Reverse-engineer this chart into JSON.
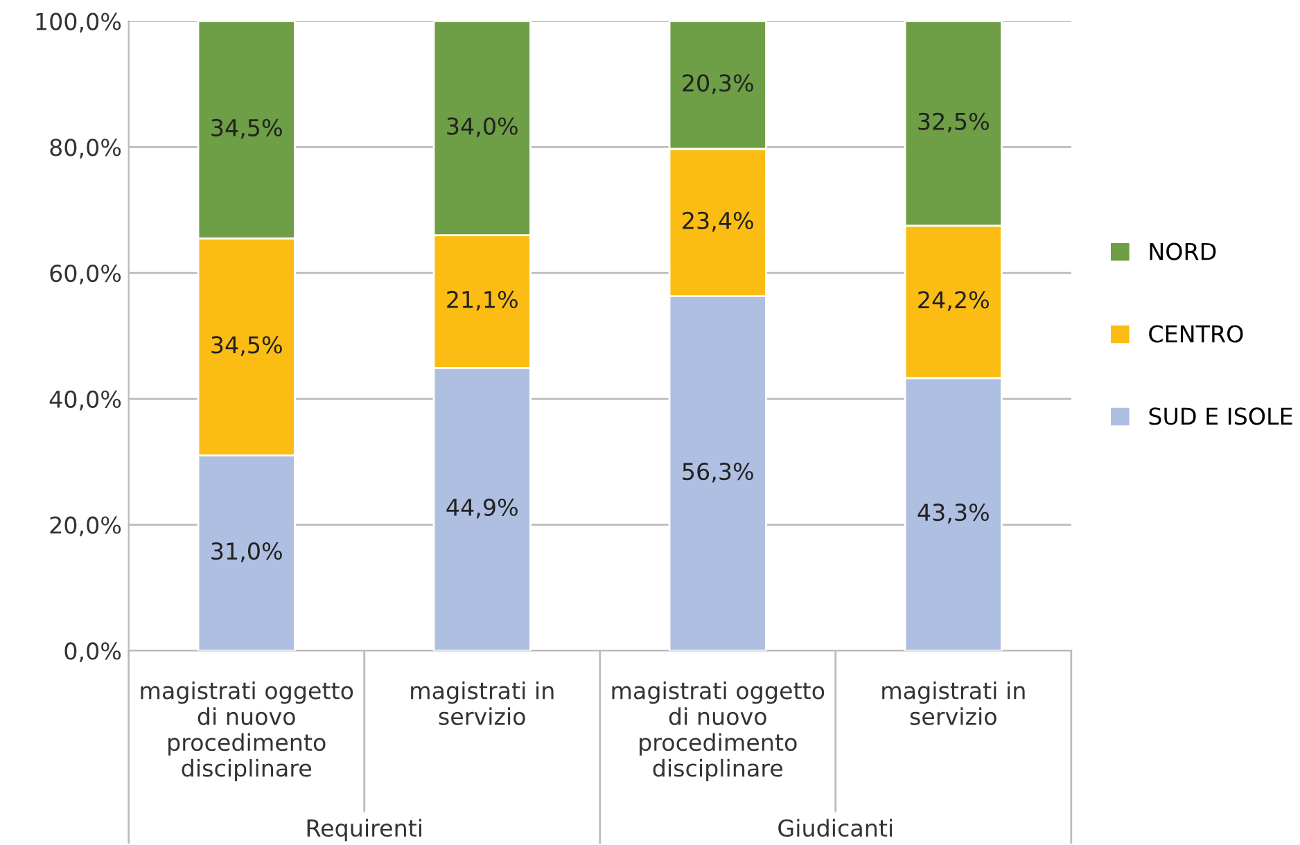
{
  "chart_data": {
    "type": "bar",
    "stacked": true,
    "categories": [
      "magistrati oggetto\ndi nuovo\nprocedimento\ndisciplinare",
      "magistrati in\nservizio",
      "magistrati oggetto\ndi nuovo\nprocedimento\ndisciplinare",
      "magistrati in\nservizio"
    ],
    "series": [
      {
        "name": "SUD E ISOLE",
        "color": "#aebfe2",
        "values": [
          31.0,
          44.9,
          56.3,
          43.3
        ],
        "value_labels": [
          "31,0%",
          "44,9%",
          "56,3%",
          "43,3%"
        ]
      },
      {
        "name": "CENTRO",
        "color": "#fbbd14",
        "values": [
          34.5,
          21.1,
          23.4,
          24.2
        ],
        "value_labels": [
          "34,5%",
          "21,1%",
          "23,4%",
          "24,2%"
        ]
      },
      {
        "name": "NORD",
        "color": "#6e9e45",
        "values": [
          34.5,
          34.0,
          20.3,
          32.5
        ],
        "value_labels": [
          "34,5%",
          "34,0%",
          "20,3%",
          "32,5%"
        ]
      }
    ],
    "ylim": [
      0,
      100
    ],
    "yticks": [
      {
        "value": 0,
        "label": "0,0%"
      },
      {
        "value": 20,
        "label": "20,0%"
      },
      {
        "value": 40,
        "label": "40,0%"
      },
      {
        "value": 60,
        "label": "60,0%"
      },
      {
        "value": 80,
        "label": "80,0%"
      },
      {
        "value": 100,
        "label": "100,0%"
      }
    ],
    "grid": "y",
    "legend": "right",
    "annotations": [
      "Requirenti",
      "Giudicanti"
    ]
  }
}
